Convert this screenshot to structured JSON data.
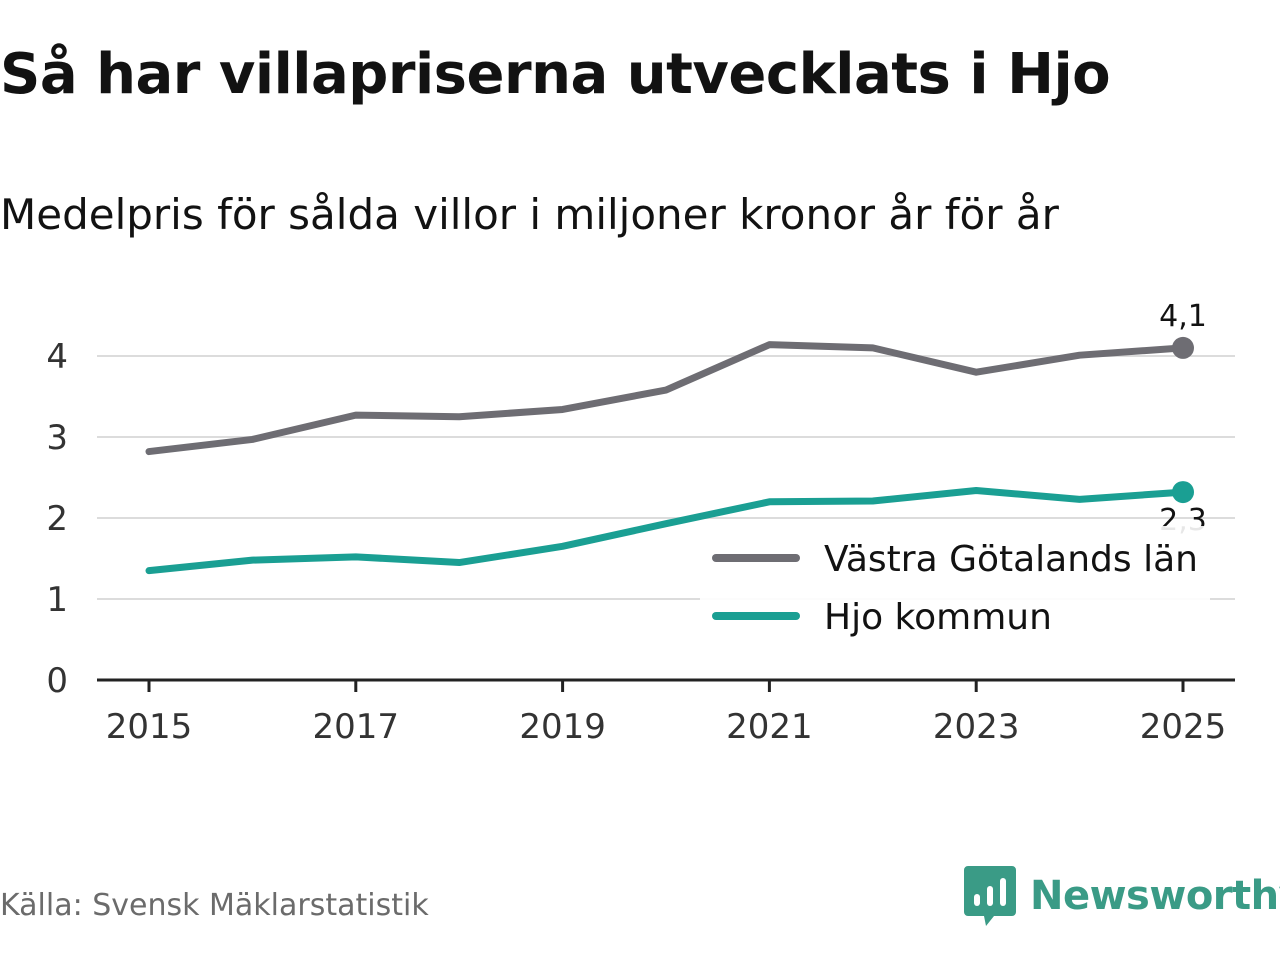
{
  "header": {
    "title": "Så har villapriserna utvecklats i Hjo",
    "subtitle": "Medelpris för sålda villor i miljoner kronor år för år"
  },
  "footer": {
    "source": "Källa: Svensk Mäklarstatistik",
    "brand": "Newsworthy",
    "brand_icon": "newsworthy-logo-icon",
    "brand_color": "#3a9b86"
  },
  "chart_data": {
    "type": "line",
    "title": "Så har villapriserna utvecklats i Hjo",
    "subtitle": "Medelpris för sålda villor i miljoner kronor år för år",
    "xlabel": "",
    "ylabel": "",
    "x": [
      2015,
      2016,
      2017,
      2018,
      2019,
      2020,
      2021,
      2022,
      2023,
      2024,
      2025
    ],
    "x_ticks": [
      "2015",
      "2017",
      "2019",
      "2021",
      "2023",
      "2025"
    ],
    "y_ticks": [
      "0",
      "1",
      "2",
      "3",
      "4"
    ],
    "ylim": [
      0,
      4.5
    ],
    "grid": true,
    "legend_position": "bottom-right",
    "series": [
      {
        "name": "Västra Götalands län",
        "color": "#6e6d73",
        "values": [
          2.82,
          2.97,
          3.27,
          3.25,
          3.34,
          3.58,
          4.14,
          4.1,
          3.8,
          4.01,
          4.1
        ],
        "end_label": "4,1"
      },
      {
        "name": "Hjo kommun",
        "color": "#1a9f93",
        "values": [
          1.35,
          1.48,
          1.52,
          1.45,
          1.65,
          1.93,
          2.2,
          2.21,
          2.34,
          2.23,
          2.32
        ],
        "end_label": "2,3"
      }
    ]
  }
}
